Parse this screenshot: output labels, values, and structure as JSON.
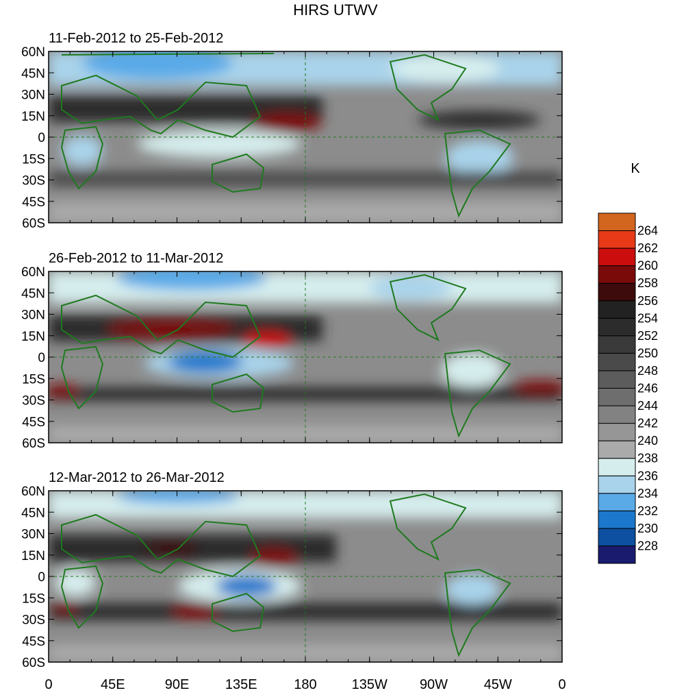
{
  "title": "HIRS UTWV",
  "colorbar": {
    "unit": "K",
    "levels": [
      "228",
      "230",
      "232",
      "234",
      "236",
      "238",
      "240",
      "242",
      "244",
      "246",
      "248",
      "250",
      "252",
      "254",
      "256",
      "258",
      "260",
      "262",
      "264"
    ],
    "colors": [
      "#1a1a6e",
      "#0d4fa0",
      "#1c78cc",
      "#5aaae8",
      "#a9d3ea",
      "#d6eded",
      "#aaaaaa",
      "#969696",
      "#828282",
      "#6e6e6e",
      "#5c5c5c",
      "#4a4a4a",
      "#3a3a3a",
      "#2c2c2c",
      "#222222",
      "#3d0b0b",
      "#7a0a0a",
      "#cc0d0d",
      "#e83a18",
      "#d2661e"
    ]
  },
  "lat_ticks": [
    "60N",
    "45N",
    "30N",
    "15N",
    "0",
    "15S",
    "30S",
    "45S",
    "60S"
  ],
  "lon_ticks": [
    "0",
    "45E",
    "90E",
    "135E",
    "180",
    "135W",
    "90W",
    "45W",
    "0"
  ],
  "panels": [
    {
      "label": "11-Feb-2012 to 25-Feb-2012"
    },
    {
      "label": "26-Feb-2012 to 11-Mar-2012"
    },
    {
      "label": "12-Mar-2012 to 26-Mar-2012"
    }
  ],
  "colors": {
    "coastline": "#1e7a1e",
    "frame": "#000000"
  }
}
